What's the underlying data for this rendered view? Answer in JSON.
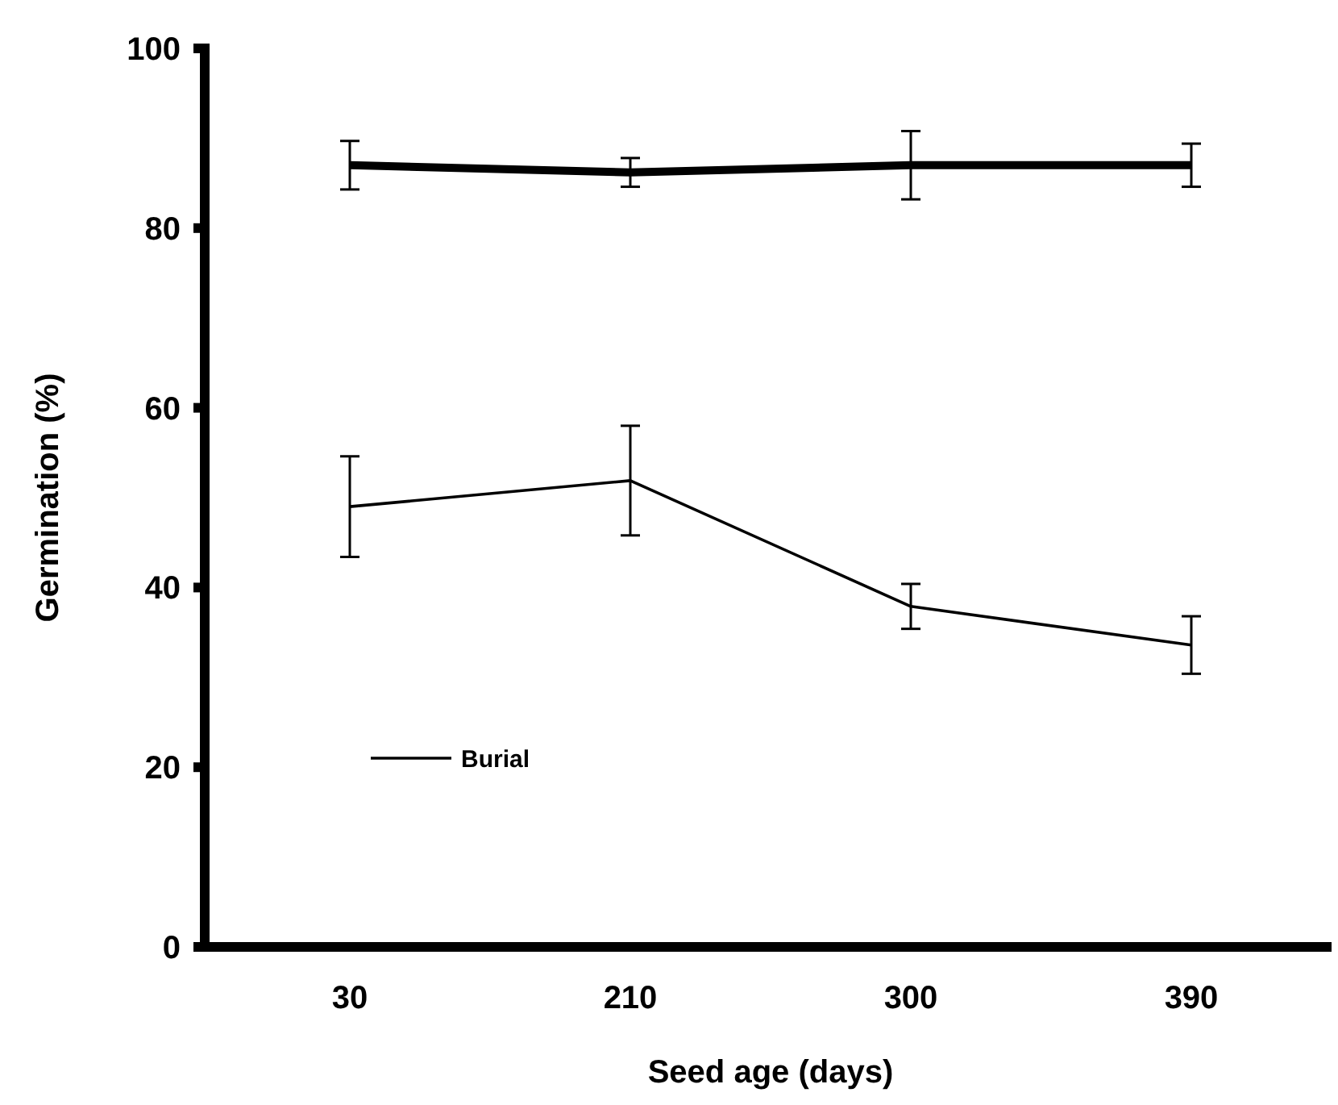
{
  "chart_data": {
    "type": "line",
    "xlabel": "Seed age (days)",
    "ylabel": "Germination (%)",
    "categories": [
      "30",
      "210",
      "300",
      "390"
    ],
    "series": [
      {
        "color": "#000000",
        "values": [
          87,
          86.2,
          87,
          87
        ],
        "errors": [
          2.7,
          1.6,
          3.8,
          2.4
        ]
      },
      {
        "name": "Burial",
        "color": "#000000",
        "values": [
          49,
          51.9,
          37.9,
          33.6
        ],
        "errors": [
          5.6,
          6.1,
          2.5,
          3.2
        ]
      }
    ],
    "ylim": [
      0,
      100
    ],
    "yticks": [
      0,
      20,
      40,
      60,
      80,
      100
    ],
    "grid": false,
    "legend": "bottom left",
    "marker": "none",
    "line_style": "solid"
  }
}
